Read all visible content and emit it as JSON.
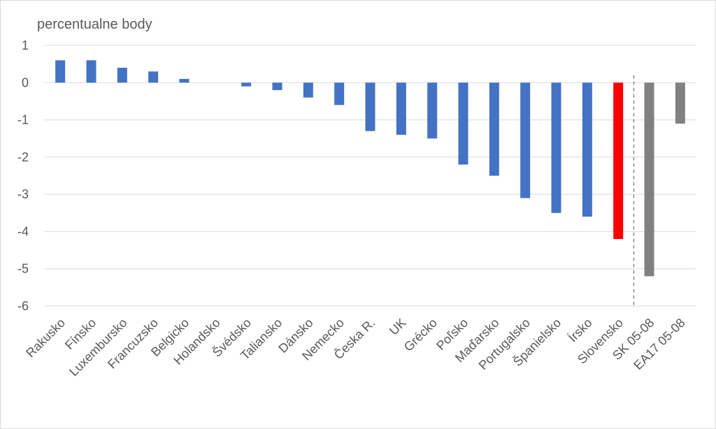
{
  "chart_data": {
    "type": "bar",
    "title": "",
    "unit_label": "percentualne body",
    "xlabel": "",
    "ylabel": "",
    "ylim": [
      -6,
      1
    ],
    "yticks": [
      1,
      0,
      -1,
      -2,
      -3,
      -4,
      -5,
      -6
    ],
    "grid": true,
    "categories": [
      "Rakusko",
      "Fínsko",
      "Luxembursko",
      "Francuzsko",
      "Belgicko",
      "Holandsko",
      "Švédsko",
      "Taliansko",
      "Dánsko",
      "Nemecko",
      "Česka R.",
      "UK",
      "Grécko",
      "Poľsko",
      "Maďarsko",
      "Portugalsko",
      "Španielsko",
      "Írsko",
      "Slovensko",
      "SK 05-08",
      "EA17 05-08"
    ],
    "values": [
      0.6,
      0.6,
      0.4,
      0.3,
      0.1,
      0.0,
      -0.1,
      -0.2,
      -0.4,
      -0.6,
      -1.3,
      -1.4,
      -1.5,
      -2.2,
      -2.5,
      -3.1,
      -3.5,
      -3.6,
      -4.2,
      -5.2,
      -1.1
    ],
    "bar_colors": [
      "#4472c4",
      "#4472c4",
      "#4472c4",
      "#4472c4",
      "#4472c4",
      "#4472c4",
      "#4472c4",
      "#4472c4",
      "#4472c4",
      "#4472c4",
      "#4472c4",
      "#4472c4",
      "#4472c4",
      "#4472c4",
      "#4472c4",
      "#4472c4",
      "#4472c4",
      "#4472c4",
      "#ff0000",
      "#808080",
      "#808080"
    ],
    "separator_after_category": "Slovensko",
    "colors": {
      "default": "#4472c4",
      "highlight": "#ff0000",
      "reference": "#808080",
      "grid": "#d9d9d9",
      "text": "#595959"
    }
  }
}
